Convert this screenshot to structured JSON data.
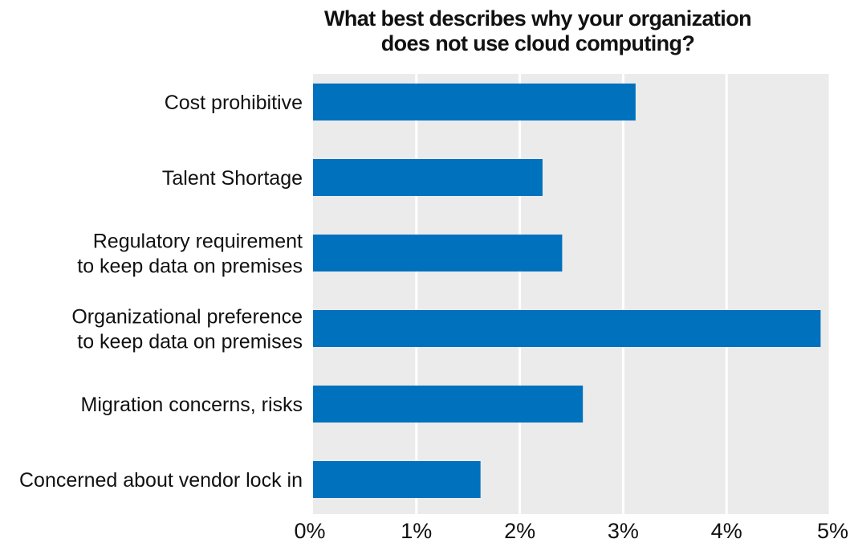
{
  "chart_data": {
    "type": "bar",
    "orientation": "horizontal",
    "title_lines": [
      "What best describes  why your organization",
      "does not use cloud computing?"
    ],
    "categories": [
      [
        "Cost prohibitive"
      ],
      [
        "Talent Shortage"
      ],
      [
        "Regulatory requirement",
        "to keep data on premises"
      ],
      [
        "Organizational preference",
        "to keep data on premises"
      ],
      [
        "Migration concerns, risks"
      ],
      [
        "Concerned about vendor lock in"
      ]
    ],
    "values": [
      3.12,
      2.22,
      2.41,
      4.91,
      2.61,
      1.62
    ],
    "unit": "%",
    "xlim": [
      0,
      5
    ],
    "xticks": [
      0,
      1,
      2,
      3,
      4,
      5
    ],
    "xtick_labels": [
      "0%",
      "1%",
      "2%",
      "3%",
      "4%",
      "5%"
    ],
    "grid": true,
    "colors": {
      "bar": "#0071bd",
      "background": "#ebebeb",
      "grid": "#ffffff"
    }
  }
}
